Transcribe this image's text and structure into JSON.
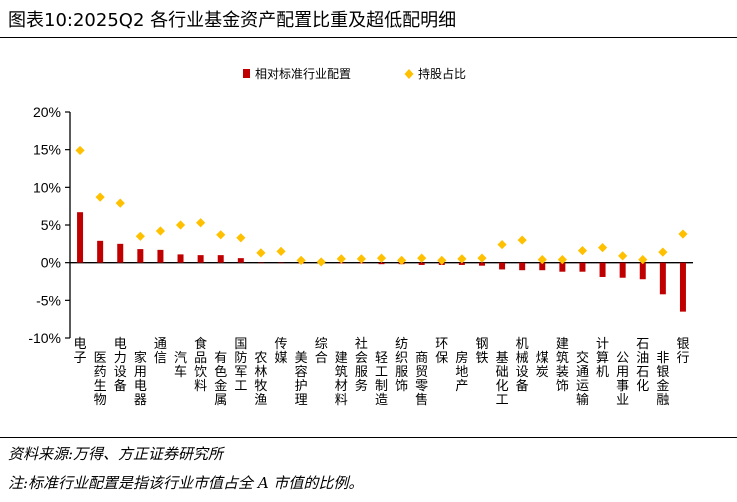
{
  "title": "图表10:2025Q2 各行业基金资产配置比重及超低配明细",
  "footer": {
    "source": "资料来源:万得、方正证券研究所",
    "note": "注:标准行业配置是指该行业市值占全 A 市值的比例。"
  },
  "colors": {
    "bar": "#C00000",
    "dot": "#FFC000",
    "axis": "#000000"
  },
  "chart_data": {
    "type": "bar",
    "title": "",
    "xlabel": "",
    "ylabel": "",
    "ylim": [
      -10,
      20
    ],
    "yticks": [
      20,
      15,
      10,
      5,
      0,
      -5,
      -10
    ],
    "ytick_labels": [
      "20%",
      "15%",
      "10%",
      "5%",
      "0%",
      "-5%",
      "-10%"
    ],
    "grid": false,
    "legend_position": "top-center",
    "categories": [
      "电子",
      "医药生物",
      "电力设备",
      "家用电器",
      "通信",
      "汽车",
      "食品饮料",
      "有色金属",
      "国防军工",
      "农林牧渔",
      "传媒",
      "美容护理",
      "综合",
      "建筑材料",
      "社会服务",
      "轻工制造",
      "纺织服饰",
      "商贸零售",
      "环保",
      "房地产",
      "钢铁",
      "基础化工",
      "机械设备",
      "煤炭",
      "建筑装饰",
      "交通运输",
      "计算机",
      "公用事业",
      "石油石化",
      "非银金融",
      "银行"
    ],
    "series": [
      {
        "name": "相对标准行业配置",
        "kind": "bar",
        "values": [
          6.7,
          2.9,
          2.5,
          1.8,
          1.7,
          1.1,
          1.0,
          1.0,
          0.6,
          0.0,
          0.0,
          -0.1,
          -0.1,
          -0.1,
          -0.1,
          -0.2,
          -0.2,
          -0.3,
          -0.3,
          -0.3,
          -0.4,
          -0.9,
          -1.0,
          -1.0,
          -1.2,
          -1.2,
          -1.9,
          -2.0,
          -2.2,
          -4.2,
          -6.5
        ]
      },
      {
        "name": "持股占比",
        "kind": "scatter",
        "values": [
          14.9,
          8.7,
          7.9,
          3.5,
          4.2,
          5.0,
          5.3,
          3.7,
          3.3,
          1.3,
          1.5,
          0.3,
          0.1,
          0.5,
          0.5,
          0.6,
          0.3,
          0.6,
          0.3,
          0.5,
          0.6,
          2.4,
          3.0,
          0.4,
          0.4,
          1.6,
          2.0,
          0.9,
          0.4,
          1.4,
          3.8
        ]
      }
    ]
  }
}
